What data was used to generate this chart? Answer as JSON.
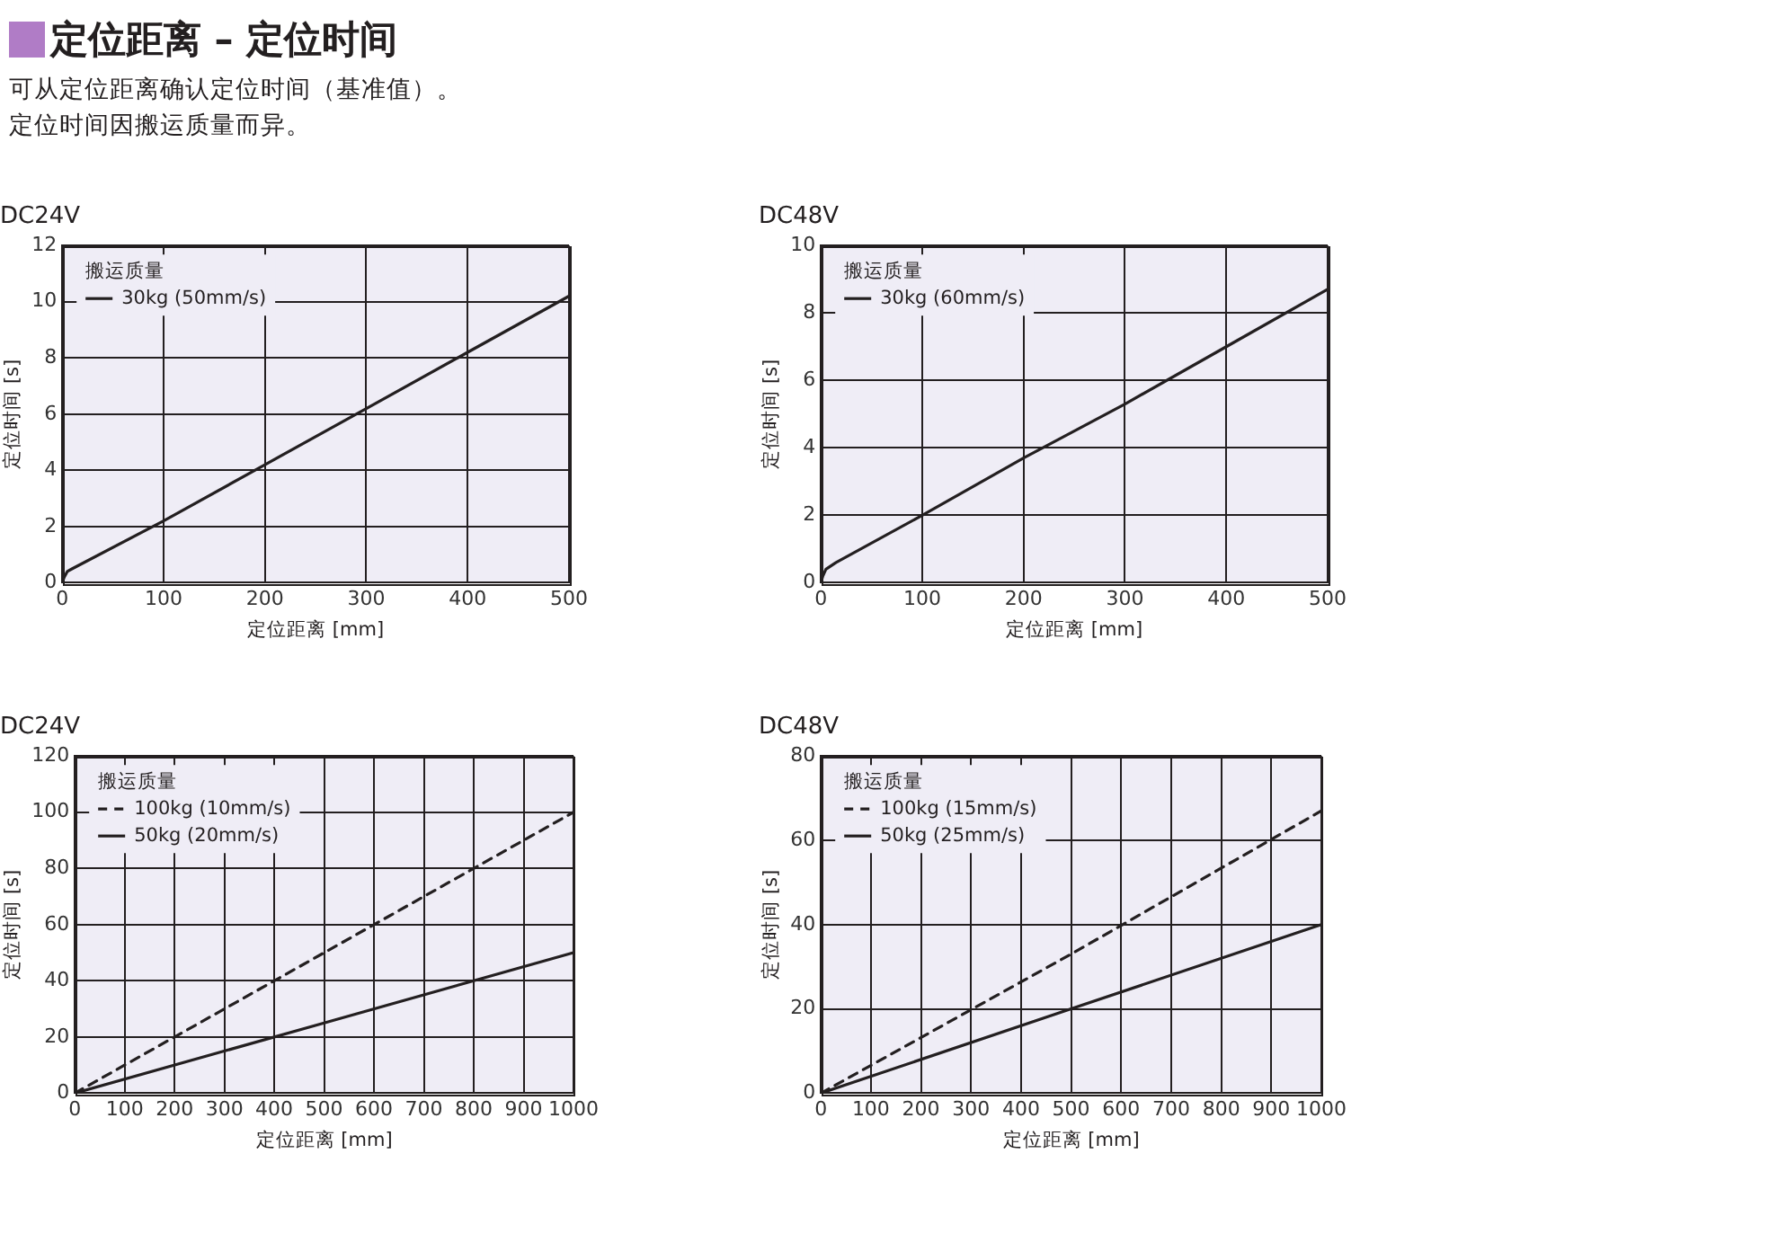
{
  "chart_data": [
    {
      "type": "other",
      "title": "定位距离 – 定位时间",
      "annotations": [
        "可从定位距离确认定位时间（基准值）。",
        "定位时间因搬运质量而异。"
      ]
    },
    {
      "type": "line",
      "title": "DC24V",
      "xlabel": "定位距离 [mm]",
      "ylabel": "定位时间 [s]",
      "legend_title": "搬运质量",
      "x": [
        0,
        2,
        5,
        10,
        100,
        200,
        300,
        400,
        500
      ],
      "series": [
        {
          "name": "30kg (50mm/s)",
          "color": "#231f20",
          "line_style": "solid",
          "values": [
            0,
            0.2,
            0.4,
            0.5,
            2.2,
            4.2,
            6.2,
            8.2,
            10.2
          ]
        }
      ],
      "xlim": [
        0,
        500
      ],
      "xticks": [
        0,
        100,
        200,
        300,
        400,
        500
      ],
      "ylim": [
        0,
        12
      ],
      "yticks": [
        0,
        2,
        4,
        6,
        8,
        10,
        12
      ],
      "grid": true,
      "legend": "top left"
    },
    {
      "type": "line",
      "title": "DC48V",
      "xlabel": "定位距离 [mm]",
      "ylabel": "定位时间 [s]",
      "legend_title": "搬运质量",
      "x": [
        0,
        2,
        5,
        15,
        100,
        200,
        300,
        400,
        500
      ],
      "series": [
        {
          "name": "30kg (60mm/s)",
          "color": "#231f20",
          "line_style": "solid",
          "values": [
            0,
            0.2,
            0.4,
            0.6,
            2.0,
            3.7,
            5.3,
            7.0,
            8.7
          ]
        }
      ],
      "xlim": [
        0,
        500
      ],
      "xticks": [
        0,
        100,
        200,
        300,
        400,
        500
      ],
      "ylim": [
        0,
        10
      ],
      "yticks": [
        0,
        2,
        4,
        6,
        8,
        10
      ],
      "grid": true,
      "legend": "top left"
    },
    {
      "type": "line",
      "title": "DC24V",
      "xlabel": "定位距离 [mm]",
      "ylabel": "定位时间 [s]",
      "legend_title": "搬运质量",
      "x": [
        0,
        500,
        1000
      ],
      "series": [
        {
          "name": "100kg (10mm/s)",
          "color": "#231f20",
          "line_style": "dashed",
          "values": [
            0,
            50,
            100
          ]
        },
        {
          "name": "50kg (20mm/s)",
          "color": "#231f20",
          "line_style": "solid",
          "values": [
            0,
            25,
            50
          ]
        }
      ],
      "xlim": [
        0,
        1000
      ],
      "xticks": [
        0,
        100,
        200,
        300,
        400,
        500,
        600,
        700,
        800,
        900,
        1000
      ],
      "ylim": [
        0,
        120
      ],
      "yticks": [
        0,
        20,
        40,
        60,
        80,
        100,
        120
      ],
      "grid": true,
      "legend": "top left"
    },
    {
      "type": "line",
      "title": "DC48V",
      "xlabel": "定位距离 [mm]",
      "ylabel": "定位时间 [s]",
      "legend_title": "搬运质量",
      "x": [
        0,
        500,
        1000
      ],
      "series": [
        {
          "name": "100kg (15mm/s)",
          "color": "#231f20",
          "line_style": "dashed",
          "values": [
            0,
            33,
            67
          ]
        },
        {
          "name": "50kg (25mm/s)",
          "color": "#231f20",
          "line_style": "solid",
          "values": [
            0,
            20,
            40
          ]
        }
      ],
      "xlim": [
        0,
        1000
      ],
      "xticks": [
        0,
        100,
        200,
        300,
        400,
        500,
        600,
        700,
        800,
        900,
        1000
      ],
      "ylim": [
        0,
        80
      ],
      "yticks": [
        0,
        20,
        40,
        60,
        80
      ],
      "grid": true,
      "legend": "top left"
    }
  ]
}
